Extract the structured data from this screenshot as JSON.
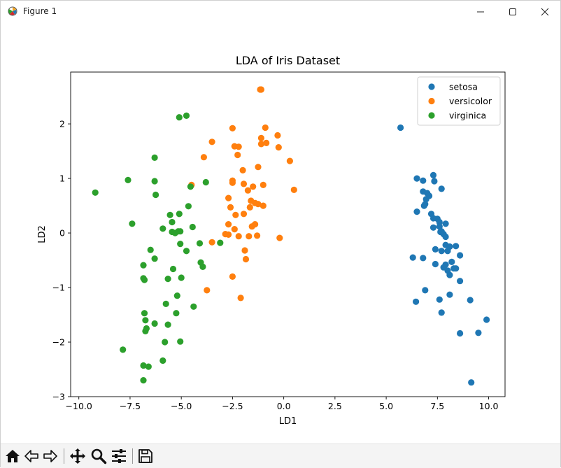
{
  "window": {
    "title": "Figure 1"
  },
  "icons": {
    "app": "matplotlib-figure-icon",
    "minimize": "minimize-icon",
    "maximize": "maximize-icon",
    "close": "close-icon"
  },
  "toolbar": {
    "tools": [
      "home-icon",
      "back-arrow-icon",
      "forward-arrow-icon",
      "pan-icon",
      "zoom-icon",
      "configure-subplots-icon",
      "save-icon"
    ]
  },
  "chart_data": {
    "type": "scatter",
    "title": "LDA of Iris Dataset",
    "xlabel": "LD1",
    "ylabel": "LD2",
    "xlim": [
      -10.4,
      10.8
    ],
    "ylim": [
      -3.0,
      2.95
    ],
    "xticks": [
      -10,
      -7.5,
      -5,
      -2.5,
      0,
      2.5,
      5,
      7.5,
      10
    ],
    "xtick_labels": [
      "−10.0",
      "−7.5",
      "−5.0",
      "−2.5",
      "0.0",
      "2.5",
      "5.0",
      "7.5",
      "10.0"
    ],
    "yticks": [
      -3,
      -2,
      -1,
      0,
      1,
      2
    ],
    "ytick_labels": [
      "−3",
      "−2",
      "−1",
      "0",
      "1",
      "2"
    ],
    "grid": false,
    "legend": "top-right",
    "series": [
      {
        "name": "setosa",
        "color": "#1f77b4",
        "points": [
          [
            5.7,
            1.93
          ],
          [
            6.5,
            1.0
          ],
          [
            6.8,
            0.96
          ],
          [
            7.3,
            1.06
          ],
          [
            7.35,
            0.95
          ],
          [
            7.7,
            0.81
          ],
          [
            6.8,
            0.76
          ],
          [
            7.0,
            0.73
          ],
          [
            7.1,
            0.68
          ],
          [
            6.95,
            0.62
          ],
          [
            6.9,
            0.53
          ],
          [
            6.85,
            0.5
          ],
          [
            6.5,
            0.39
          ],
          [
            7.2,
            0.35
          ],
          [
            7.5,
            0.26
          ],
          [
            7.3,
            0.27
          ],
          [
            7.6,
            0.2
          ],
          [
            7.9,
            0.17
          ],
          [
            7.6,
            0.12
          ],
          [
            7.3,
            0.1
          ],
          [
            7.7,
            0.03
          ],
          [
            7.65,
            0.02
          ],
          [
            7.8,
            -0.02
          ],
          [
            7.9,
            -0.07
          ],
          [
            7.9,
            -0.22
          ],
          [
            8.1,
            -0.25
          ],
          [
            8.4,
            -0.24
          ],
          [
            7.4,
            -0.3
          ],
          [
            7.7,
            -0.33
          ],
          [
            8.0,
            -0.33
          ],
          [
            8.6,
            -0.41
          ],
          [
            6.3,
            -0.45
          ],
          [
            6.8,
            -0.46
          ],
          [
            8.2,
            -0.53
          ],
          [
            7.4,
            -0.57
          ],
          [
            7.9,
            -0.58
          ],
          [
            7.8,
            -0.63
          ],
          [
            8.3,
            -0.65
          ],
          [
            8.4,
            -0.65
          ],
          [
            8.0,
            -0.69
          ],
          [
            8.1,
            -0.77
          ],
          [
            8.6,
            -0.88
          ],
          [
            6.9,
            -1.05
          ],
          [
            8.1,
            -1.13
          ],
          [
            7.6,
            -1.22
          ],
          [
            6.45,
            -1.26
          ],
          [
            9.1,
            -1.23
          ],
          [
            7.7,
            -1.46
          ],
          [
            9.9,
            -1.59
          ],
          [
            8.6,
            -1.84
          ],
          [
            9.5,
            -1.83
          ],
          [
            9.15,
            -2.74
          ]
        ]
      },
      {
        "name": "versicolor",
        "color": "#ff7f0e",
        "points": [
          [
            -1.15,
            2.63
          ],
          [
            -1.1,
            2.63
          ],
          [
            -2.5,
            1.92
          ],
          [
            -0.9,
            1.93
          ],
          [
            -1.1,
            1.74
          ],
          [
            -0.3,
            1.79
          ],
          [
            -3.5,
            1.67
          ],
          [
            -2.4,
            1.59
          ],
          [
            -2.2,
            1.58
          ],
          [
            -1.1,
            1.63
          ],
          [
            -0.85,
            1.65
          ],
          [
            -0.25,
            1.57
          ],
          [
            -2.25,
            1.43
          ],
          [
            -3.9,
            1.39
          ],
          [
            0.3,
            1.32
          ],
          [
            -1.25,
            1.21
          ],
          [
            -2.0,
            1.15
          ],
          [
            -2.5,
            0.96
          ],
          [
            -2.5,
            0.92
          ],
          [
            -1.95,
            0.9
          ],
          [
            -1.5,
            0.85
          ],
          [
            -4.5,
            0.88
          ],
          [
            -1.0,
            0.88
          ],
          [
            0.5,
            0.79
          ],
          [
            -1.75,
            0.78
          ],
          [
            -2.7,
            0.64
          ],
          [
            -1.6,
            0.59
          ],
          [
            -1.4,
            0.55
          ],
          [
            -1.25,
            0.53
          ],
          [
            -1.0,
            0.5
          ],
          [
            -2.6,
            0.47
          ],
          [
            -1.65,
            0.47
          ],
          [
            -2.35,
            0.33
          ],
          [
            -1.95,
            0.35
          ],
          [
            -2.7,
            0.16
          ],
          [
            -1.4,
            0.16
          ],
          [
            -1.55,
            0.12
          ],
          [
            -2.4,
            0.07
          ],
          [
            -2.85,
            -0.02
          ],
          [
            -2.7,
            -0.03
          ],
          [
            -1.3,
            -0.05
          ],
          [
            -2.2,
            -0.06
          ],
          [
            -1.7,
            -0.06
          ],
          [
            -0.2,
            -0.09
          ],
          [
            -3.5,
            -0.17
          ],
          [
            -1.9,
            -0.32
          ],
          [
            -1.85,
            -0.48
          ],
          [
            -2.5,
            -0.8
          ],
          [
            -3.75,
            -1.05
          ],
          [
            -2.1,
            -1.19
          ]
        ]
      },
      {
        "name": "virginica",
        "color": "#2ca02c",
        "points": [
          [
            -5.1,
            2.12
          ],
          [
            -4.75,
            2.15
          ],
          [
            -6.3,
            1.38
          ],
          [
            -7.6,
            0.97
          ],
          [
            -6.3,
            0.95
          ],
          [
            -3.8,
            0.93
          ],
          [
            -4.55,
            0.85
          ],
          [
            -9.2,
            0.74
          ],
          [
            -6.25,
            0.7
          ],
          [
            -4.65,
            0.49
          ],
          [
            -5.1,
            0.35
          ],
          [
            -5.55,
            0.33
          ],
          [
            -5.45,
            0.2
          ],
          [
            -7.4,
            0.17
          ],
          [
            -4.45,
            0.11
          ],
          [
            -5.9,
            0.08
          ],
          [
            -5.45,
            0.02
          ],
          [
            -5.15,
            0.03
          ],
          [
            -5.05,
            0.03
          ],
          [
            -5.3,
            0.0
          ],
          [
            -4.1,
            -0.19
          ],
          [
            -5.05,
            -0.2
          ],
          [
            -3.1,
            -0.18
          ],
          [
            -6.5,
            -0.31
          ],
          [
            -4.75,
            -0.33
          ],
          [
            -6.3,
            -0.47
          ],
          [
            -4.05,
            -0.54
          ],
          [
            -6.85,
            -0.59
          ],
          [
            -3.95,
            -0.62
          ],
          [
            -5.4,
            -0.66
          ],
          [
            -6.85,
            -0.83
          ],
          [
            -5.65,
            -0.84
          ],
          [
            -5.0,
            -0.82
          ],
          [
            -6.8,
            -0.86
          ],
          [
            -5.2,
            -1.15
          ],
          [
            -5.75,
            -1.3
          ],
          [
            -4.4,
            -1.35
          ],
          [
            -6.8,
            -1.47
          ],
          [
            -5.25,
            -1.47
          ],
          [
            -6.75,
            -1.6
          ],
          [
            -6.3,
            -1.66
          ],
          [
            -5.65,
            -1.68
          ],
          [
            -6.7,
            -1.75
          ],
          [
            -6.75,
            -1.8
          ],
          [
            -5.05,
            -1.99
          ],
          [
            -5.8,
            -2.0
          ],
          [
            -7.85,
            -2.14
          ],
          [
            -5.9,
            -2.34
          ],
          [
            -6.85,
            -2.43
          ],
          [
            -6.6,
            -2.45
          ],
          [
            -6.85,
            -2.7
          ]
        ]
      }
    ]
  }
}
